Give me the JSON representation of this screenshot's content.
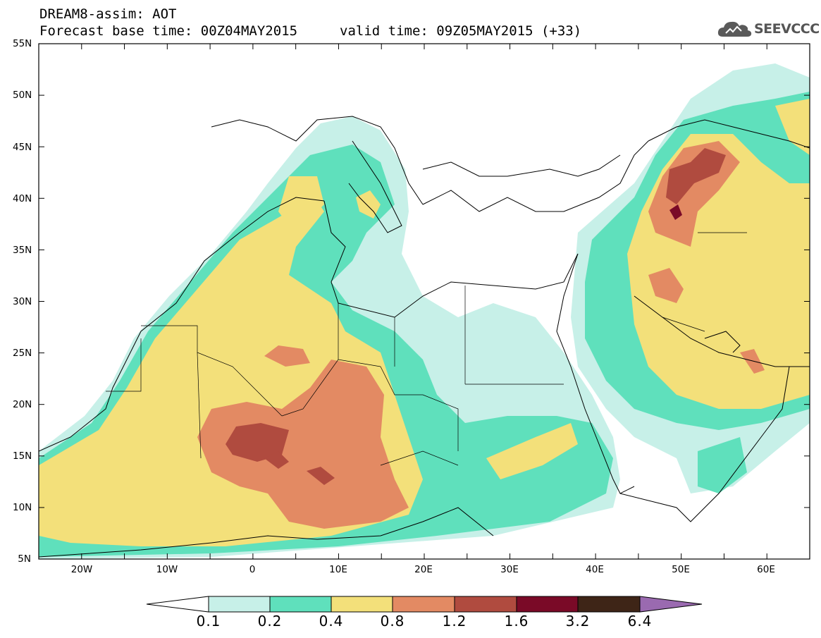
{
  "header": {
    "title_line1": "DREAM8-assim: AOT",
    "title_line2a": "Forecast base time: 00Z04MAY2015",
    "title_line2b": "valid time: 09Z05MAY2015 (+33)"
  },
  "logo": {
    "text": "SEEVCCC",
    "icon": "cloud-icon"
  },
  "map": {
    "lat_labels": [
      "55N",
      "50N",
      "45N",
      "40N",
      "35N",
      "30N",
      "25N",
      "20N",
      "15N",
      "10N",
      "5N"
    ],
    "lon_labels": [
      "20W",
      "10W",
      "0",
      "10E",
      "20E",
      "30E",
      "40E",
      "50E",
      "60E"
    ],
    "lat_range": [
      5,
      55
    ],
    "lon_range": [
      -25,
      65
    ]
  },
  "colorbar": {
    "labels": [
      "0.1",
      "0.2",
      "0.4",
      "0.8",
      "1.2",
      "1.6",
      "3.2",
      "6.4"
    ],
    "colors": [
      "#ffffff",
      "#c7f0e8",
      "#5fe0bc",
      "#f3e07a",
      "#e38a63",
      "#b04b3f",
      "#7a0a27",
      "#3e2517",
      "#9a6ab0"
    ]
  },
  "aot_palette": {
    "light_teal": "#c7f0e8",
    "teal": "#5fe0bc",
    "yellow": "#f3e07a",
    "orange": "#e38a63",
    "red_brown": "#b04b3f",
    "maroon": "#7a0a27"
  }
}
